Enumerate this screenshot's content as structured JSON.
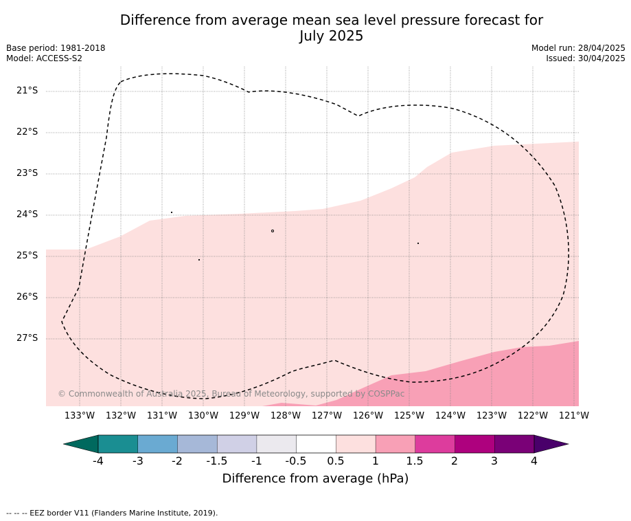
{
  "header": {
    "title_line1": "Difference from average mean sea level pressure forecast for",
    "title_line2": "July 2025",
    "base_period": "Base period: 1981-2018",
    "model": "Model: ACCESS-S2",
    "model_run": "Model run: 28/04/2025",
    "issued": "Issued: 30/04/2025"
  },
  "map": {
    "latitude_labels": [
      "21°S",
      "22°S",
      "23°S",
      "24°S",
      "25°S",
      "26°S",
      "27°S"
    ],
    "longitude_labels": [
      "133°W",
      "132°W",
      "131°W",
      "130°W",
      "129°W",
      "128°W",
      "127°W",
      "126°W",
      "125°W",
      "124°W",
      "123°W",
      "122°W",
      "121°W"
    ],
    "copyright": "© Commonwealth of Australia 2025, Bureau of Meteorology, supported by COSPPac",
    "fill_colors": {
      "band_0_5_to_1": "#fde0df",
      "band_1_to_1_5": "#f8a0b6"
    }
  },
  "colorbar": {
    "title": "Difference from average (hPa)",
    "tick_labels": [
      "-4",
      "-3",
      "-2",
      "-1.5",
      "-1",
      "-0.5",
      "0.5",
      "1",
      "1.5",
      "2",
      "3",
      "4"
    ],
    "colors": [
      "#1a8e92",
      "#6aaad2",
      "#a6b8d8",
      "#d0d0e6",
      "#ebe9ee",
      "#ffffff",
      "#fde0df",
      "#f8a0b6",
      "#dd3c9d",
      "#ae017e",
      "#7a0177"
    ],
    "extend_low_color": "#00695e",
    "extend_high_color": "#49006a"
  },
  "footer": {
    "legend_text": "-- -- -- EEZ border V11 (Flanders Marine Institute, 2019)."
  }
}
